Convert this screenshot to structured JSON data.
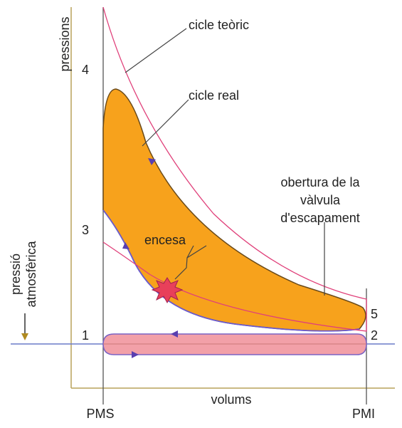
{
  "axes": {
    "y_label": "pressions",
    "x_label": "volums",
    "atmospheric_label": [
      "pressió",
      "atmosfèrica"
    ]
  },
  "positions": {
    "left": "PMS",
    "right": "PMI"
  },
  "points": [
    "1",
    "2",
    "3",
    "4",
    "5"
  ],
  "annotations": {
    "theoretical": "cicle teòric",
    "real": "cicle real",
    "exhaust": [
      "obertura de la",
      "vàlvula",
      "d'escapament"
    ],
    "ignition": "encesa"
  }
}
